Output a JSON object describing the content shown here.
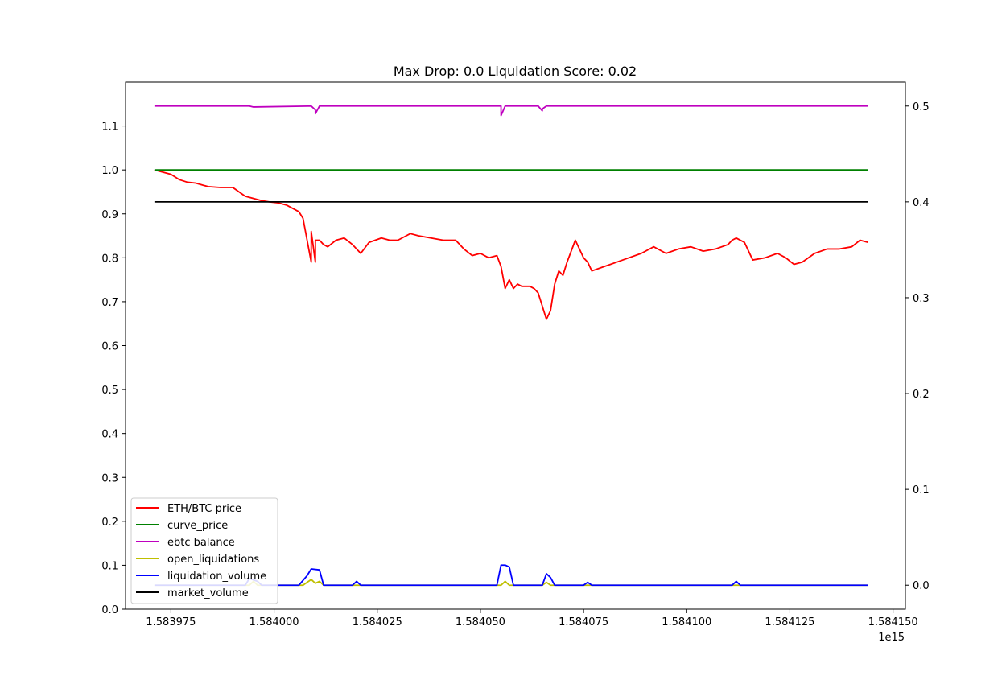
{
  "chart_data": {
    "type": "line",
    "title": "Max Drop: 0.0 Liquidation Score: 0.02",
    "x_offset_label": "1e15",
    "xlim": [
      1.583964,
      1.584153
    ],
    "x_ticks": [
      1.583975,
      1.584,
      1.584025,
      1.58405,
      1.584075,
      1.5841,
      1.584125,
      1.58415
    ],
    "x_tick_labels": [
      "1.583975",
      "1.584000",
      "1.584025",
      "1.584050",
      "1.584075",
      "1.584100",
      "1.584125",
      "1.584150"
    ],
    "y_left": {
      "ylim": [
        0.0,
        1.2
      ],
      "ticks": [
        0.0,
        0.1,
        0.2,
        0.3,
        0.4,
        0.5,
        0.6,
        0.7,
        0.8,
        0.9,
        1.0,
        1.1
      ],
      "tick_labels": [
        "0.0",
        "0.1",
        "0.2",
        "0.3",
        "0.4",
        "0.5",
        "0.6",
        "0.7",
        "0.8",
        "0.9",
        "1.0",
        "1.1"
      ]
    },
    "y_right": {
      "ylim": [
        -0.025,
        0.525
      ],
      "ticks": [
        0.0,
        0.1,
        0.2,
        0.3,
        0.4,
        0.5
      ],
      "tick_labels": [
        "0.0",
        "0.1",
        "0.2",
        "0.3",
        "0.4",
        "0.5"
      ]
    },
    "grid": false,
    "legend_position": "lower-left",
    "series": [
      {
        "name": "ETH/BTC price",
        "color": "#ff0000",
        "axis": "left",
        "x": [
          1.583971,
          1.583973,
          1.583975,
          1.583977,
          1.583979,
          1.583981,
          1.583984,
          1.583987,
          1.58399,
          1.583993,
          1.583995,
          1.583997,
          1.583999,
          1.584001,
          1.584003,
          1.584006,
          1.584007,
          1.584008,
          1.584009,
          1.584009,
          1.58401,
          1.58401,
          1.584011,
          1.584012,
          1.584013,
          1.584015,
          1.584017,
          1.584019,
          1.584021,
          1.584023,
          1.584026,
          1.584028,
          1.58403,
          1.584033,
          1.584035,
          1.584038,
          1.584041,
          1.584044,
          1.584046,
          1.584048,
          1.58405,
          1.584052,
          1.584054,
          1.584055,
          1.584056,
          1.584057,
          1.584058,
          1.584059,
          1.58406,
          1.584062,
          1.584063,
          1.584064,
          1.584065,
          1.584066,
          1.584067,
          1.584068,
          1.584069,
          1.58407,
          1.584071,
          1.584073,
          1.584075,
          1.584076,
          1.584077,
          1.58408,
          1.584083,
          1.584086,
          1.584089,
          1.584092,
          1.584095,
          1.584098,
          1.584101,
          1.584104,
          1.584107,
          1.58411,
          1.584111,
          1.584112,
          1.584114,
          1.584116,
          1.584119,
          1.584122,
          1.584124,
          1.584126,
          1.584128,
          1.584131,
          1.584134,
          1.584137,
          1.58414,
          1.584142,
          1.584144
        ],
        "y": [
          1.0,
          0.995,
          0.99,
          0.978,
          0.972,
          0.97,
          0.962,
          0.96,
          0.96,
          0.94,
          0.935,
          0.93,
          0.927,
          0.925,
          0.92,
          0.905,
          0.89,
          0.84,
          0.79,
          0.86,
          0.79,
          0.84,
          0.84,
          0.83,
          0.825,
          0.84,
          0.845,
          0.83,
          0.81,
          0.835,
          0.845,
          0.84,
          0.84,
          0.855,
          0.85,
          0.845,
          0.84,
          0.84,
          0.82,
          0.805,
          0.81,
          0.8,
          0.805,
          0.78,
          0.73,
          0.75,
          0.73,
          0.74,
          0.735,
          0.735,
          0.73,
          0.72,
          0.69,
          0.66,
          0.68,
          0.74,
          0.77,
          0.76,
          0.79,
          0.84,
          0.8,
          0.79,
          0.77,
          0.78,
          0.79,
          0.8,
          0.81,
          0.825,
          0.81,
          0.82,
          0.825,
          0.815,
          0.82,
          0.83,
          0.84,
          0.845,
          0.835,
          0.795,
          0.8,
          0.81,
          0.8,
          0.785,
          0.79,
          0.81,
          0.82,
          0.82,
          0.825,
          0.84,
          0.835
        ]
      },
      {
        "name": "curve_price",
        "color": "#008000",
        "axis": "left",
        "x": [
          1.583971,
          1.584144
        ],
        "y": [
          1.0,
          1.0
        ]
      },
      {
        "name": "ebtc balance",
        "color": "#bf00bf",
        "axis": "right",
        "x": [
          1.583971,
          1.583994,
          1.583995,
          1.584009,
          1.58401,
          1.58401,
          1.584011,
          1.584055,
          1.584055,
          1.584055,
          1.584056,
          1.584064,
          1.584065,
          1.584065,
          1.584066,
          1.584144
        ],
        "y": [
          0.5,
          0.5,
          0.499,
          0.5,
          0.496,
          0.492,
          0.5,
          0.5,
          0.495,
          0.49,
          0.5,
          0.5,
          0.495,
          0.497,
          0.5,
          0.5
        ]
      },
      {
        "name": "open_liquidations",
        "color": "#bfbf00",
        "axis": "right",
        "x": [
          1.583971,
          1.583994,
          1.583995,
          1.583996,
          1.584007,
          1.584008,
          1.584009,
          1.58401,
          1.584011,
          1.584012,
          1.584055,
          1.584056,
          1.584057,
          1.584065,
          1.584066,
          1.584067,
          1.584144
        ],
        "y": [
          0.0,
          0.0,
          0.004,
          0.0,
          0.0,
          0.003,
          0.006,
          0.002,
          0.004,
          0.0,
          0.0,
          0.004,
          0.0,
          0.0,
          0.003,
          0.0,
          0.0
        ]
      },
      {
        "name": "liquidation_volume",
        "color": "#0000ff",
        "axis": "right",
        "x": [
          1.583971,
          1.583993,
          1.583994,
          1.583996,
          1.583997,
          1.584006,
          1.584008,
          1.584009,
          1.584011,
          1.584012,
          1.584019,
          1.58402,
          1.584021,
          1.584054,
          1.584055,
          1.584056,
          1.584057,
          1.584058,
          1.584065,
          1.584066,
          1.584067,
          1.584068,
          1.584075,
          1.584076,
          1.584077,
          1.584111,
          1.584112,
          1.584113,
          1.584144
        ],
        "y": [
          0.0,
          0.0,
          0.007,
          0.004,
          0.0,
          0.0,
          0.01,
          0.017,
          0.016,
          0.0,
          0.0,
          0.004,
          0.0,
          0.0,
          0.021,
          0.021,
          0.019,
          0.0,
          0.0,
          0.012,
          0.008,
          0.0,
          0.0,
          0.003,
          0.0,
          0.0,
          0.004,
          0.0,
          0.0
        ]
      },
      {
        "name": "market_volume",
        "color": "#000000",
        "axis": "right",
        "x": [
          1.583971,
          1.584144
        ],
        "y": [
          0.4,
          0.4
        ]
      }
    ]
  }
}
